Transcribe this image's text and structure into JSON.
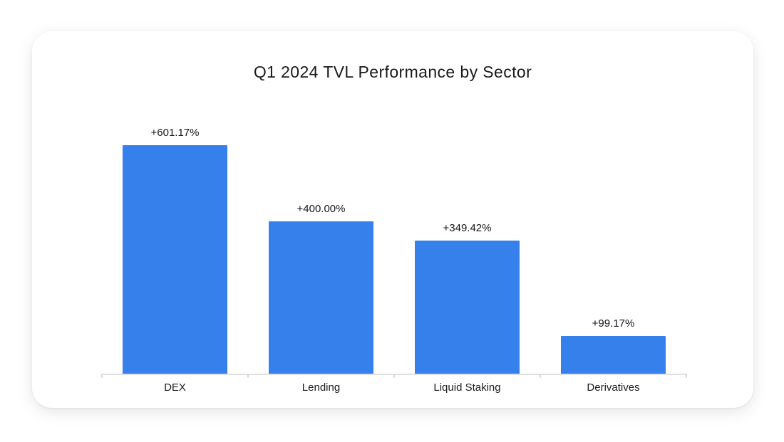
{
  "chart_data": {
    "type": "bar",
    "title": "Q1 2024 TVL Performance by Sector",
    "categories": [
      "DEX",
      "Lending",
      "Liquid Staking",
      "Derivatives"
    ],
    "values": [
      601.17,
      400.0,
      349.42,
      99.17
    ],
    "value_labels": [
      "+601.17%",
      "+400.00%",
      "+349.42%",
      "+99.17%"
    ],
    "unit": "%",
    "xlabel": "",
    "ylabel": "",
    "ylim": [
      0,
      650
    ],
    "grid": false,
    "legend": "none",
    "bar_color": "#3580EB",
    "axis_line_color": "#E0E0E0",
    "tick_color": "#D8D8D8",
    "title_color": "#1A1A1A",
    "label_color": "#161616"
  }
}
